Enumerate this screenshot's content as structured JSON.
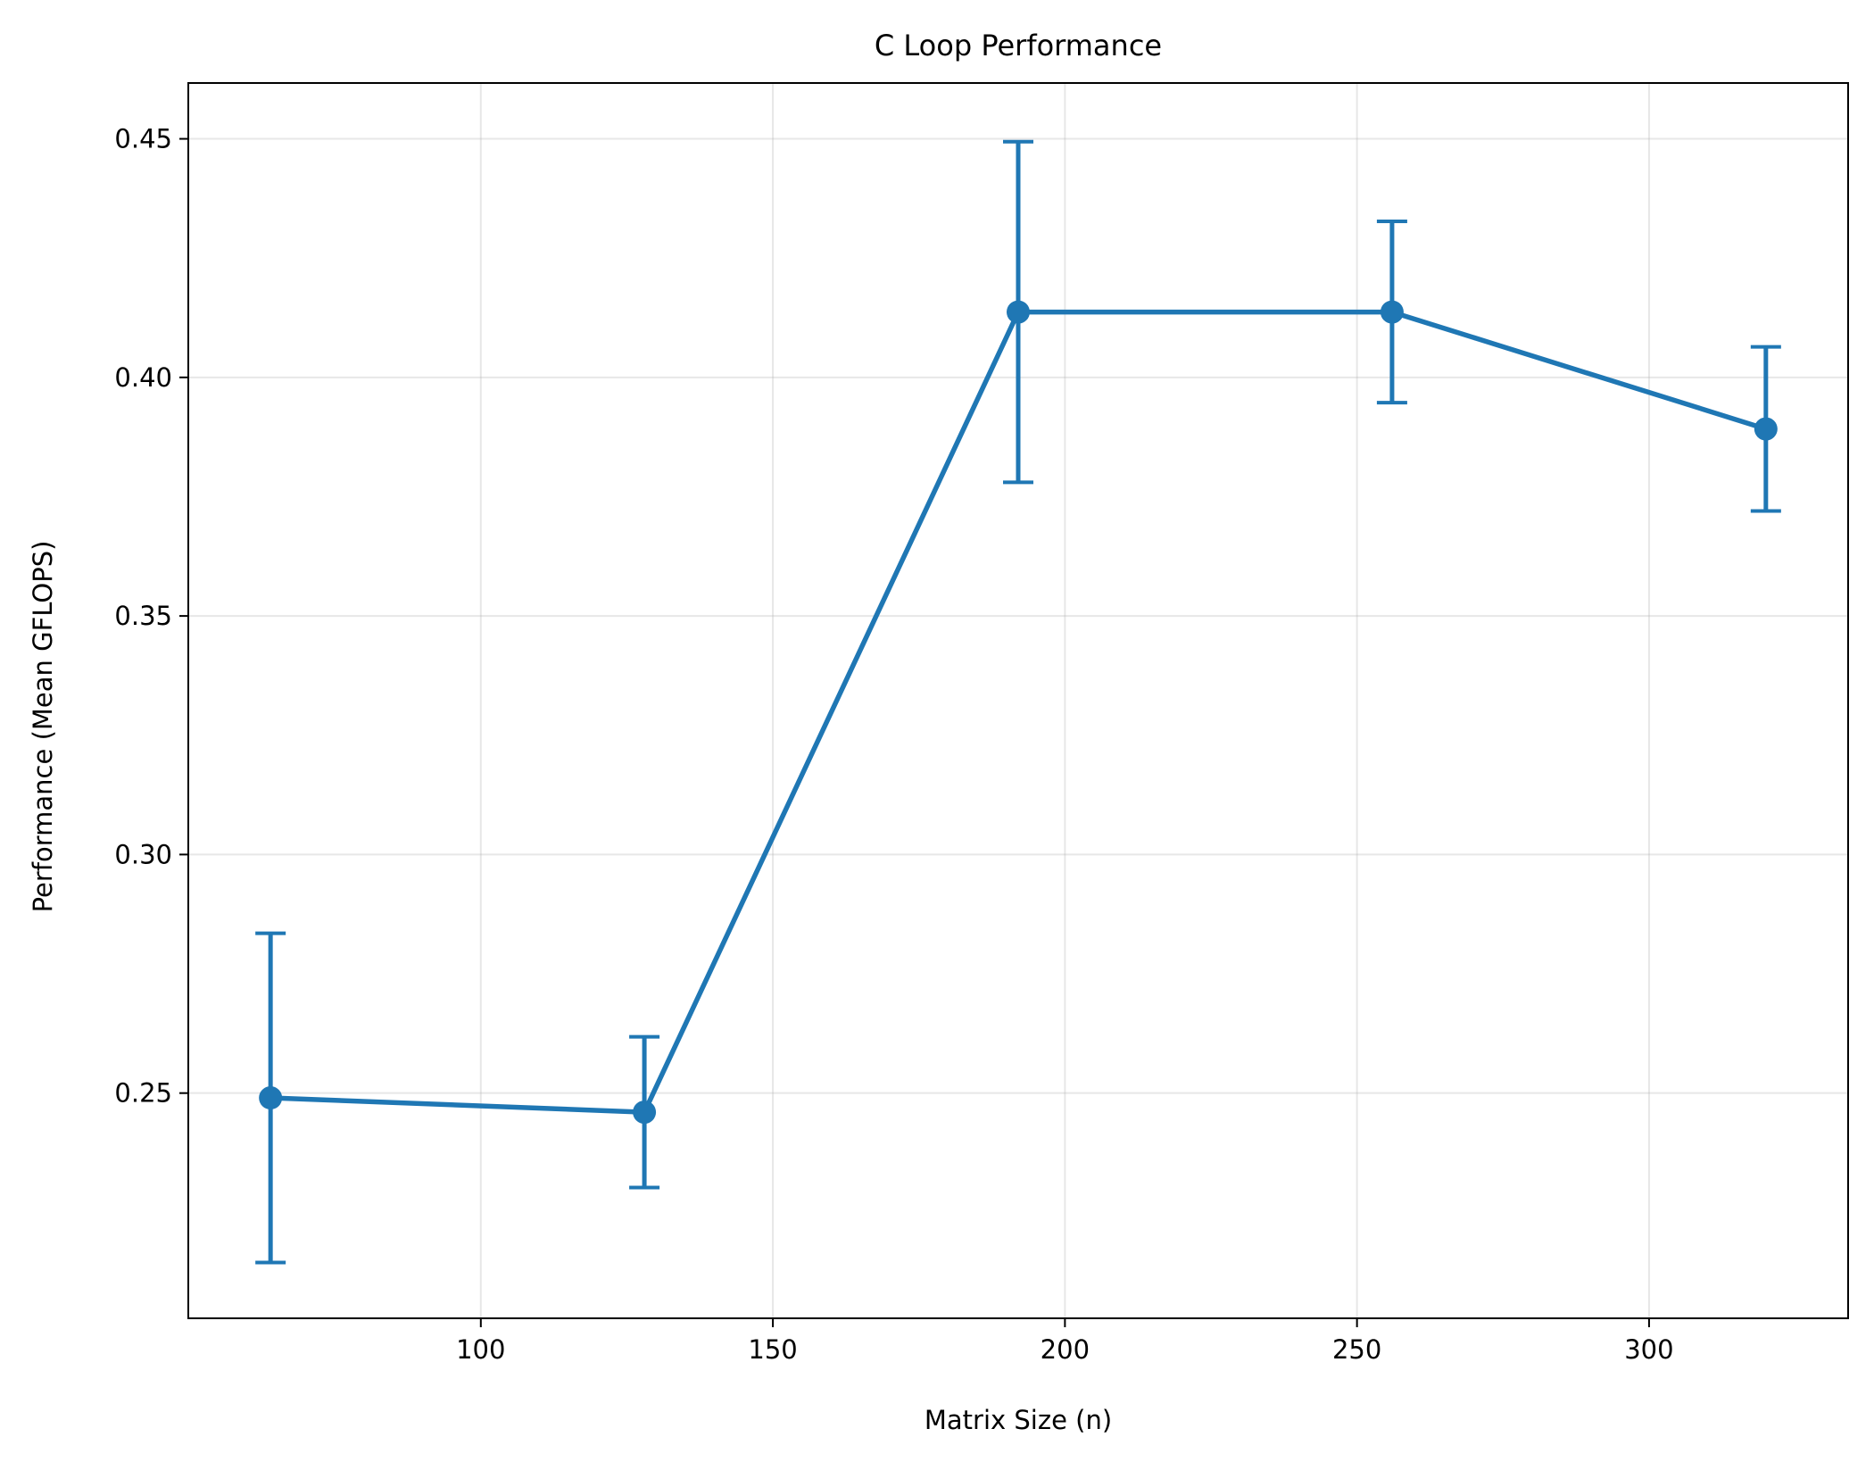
{
  "chart_data": {
    "type": "line",
    "title": "C Loop Performance",
    "xlabel": "Matrix Size (n)",
    "ylabel": "Performance (Mean GFLOPS)",
    "xlim": [
      49.92,
      334.08
    ],
    "ylim": [
      0.2028,
      0.4617
    ],
    "xticks": [
      100,
      150,
      200,
      250,
      300
    ],
    "yticks": [
      0.25,
      0.3,
      0.35,
      0.4,
      0.45
    ],
    "xtick_labels": [
      "100",
      "150",
      "200",
      "250",
      "300"
    ],
    "ytick_labels": [
      "0.25",
      "0.30",
      "0.35",
      "0.40",
      "0.45"
    ],
    "grid": true,
    "error_bars": true,
    "series": [
      {
        "color": "#1f77b4",
        "marker": "circle",
        "points": [
          {
            "x": 64,
            "y": 0.249,
            "err": 0.0345
          },
          {
            "x": 128,
            "y": 0.246,
            "err": 0.0158
          },
          {
            "x": 192,
            "y": 0.4137,
            "err": 0.0357
          },
          {
            "x": 256,
            "y": 0.4137,
            "err": 0.019
          },
          {
            "x": 320,
            "y": 0.3892,
            "err": 0.0172
          }
        ]
      }
    ]
  }
}
